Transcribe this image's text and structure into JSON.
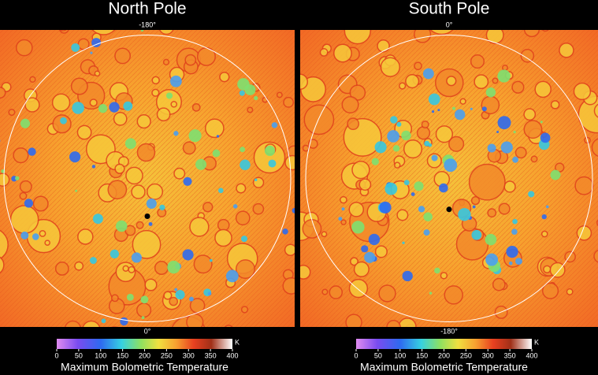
{
  "panels": [
    {
      "title": "North Pole",
      "top_label": "-180°",
      "bottom_label": "0°"
    },
    {
      "title": "South Pole",
      "top_label": "0°",
      "bottom_label": "-180°"
    }
  ],
  "colorbar": {
    "lim": [
      0,
      400
    ],
    "ticks": [
      0,
      50,
      100,
      150,
      200,
      250,
      300,
      350,
      400
    ],
    "unit": "K",
    "caption": "Maximum Bolometric Temperature"
  }
}
